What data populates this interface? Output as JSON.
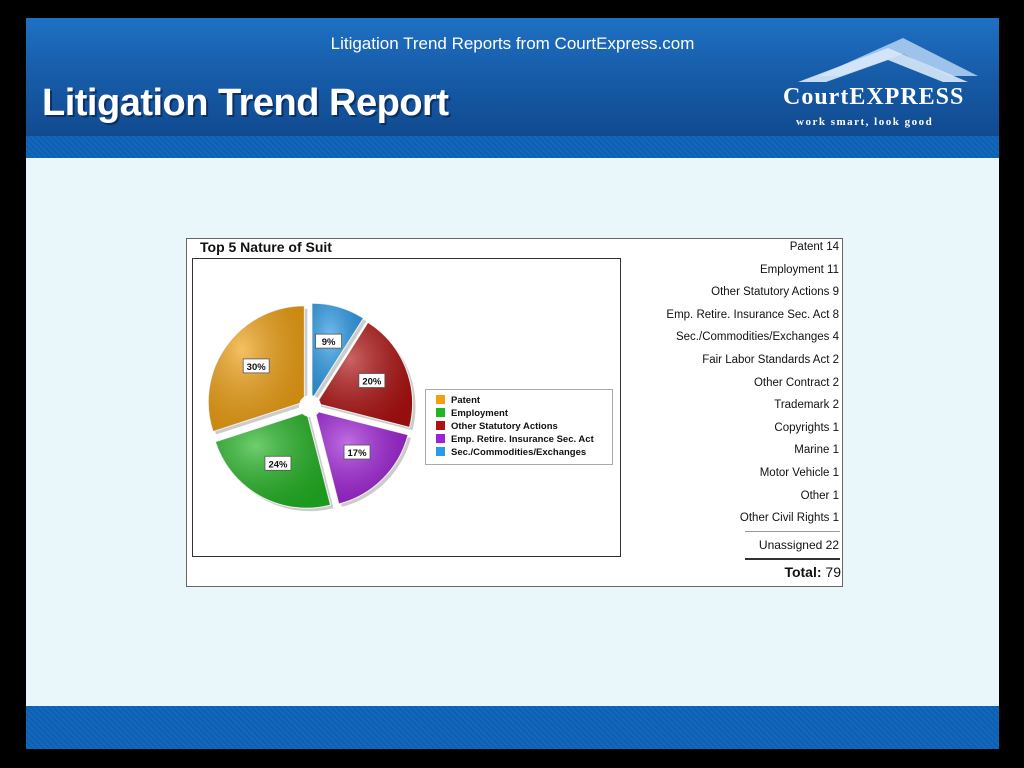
{
  "header": {
    "subtitle": "Litigation Trend Reports from CourtExpress.com",
    "title": "Litigation Trend Report",
    "logo_name": "CourtEXPRESS",
    "logo_tagline": "work smart, look good"
  },
  "report": {
    "unassigned_label": "Unassigned",
    "unassigned_value": "22",
    "total_label": "Total:",
    "total_value": "79",
    "categories": [
      {
        "label": "Patent",
        "value": "14"
      },
      {
        "label": "Employment",
        "value": "11"
      },
      {
        "label": "Other Statutory Actions",
        "value": "9"
      },
      {
        "label": "Emp. Retire. Insurance Sec. Act",
        "value": "8"
      },
      {
        "label": "Sec./Commodities/Exchanges",
        "value": "4"
      },
      {
        "label": "Fair Labor Standards Act",
        "value": "2"
      },
      {
        "label": "Other Contract",
        "value": "2"
      },
      {
        "label": "Trademark",
        "value": "2"
      },
      {
        "label": "Copyrights",
        "value": "1"
      },
      {
        "label": "Marine",
        "value": "1"
      },
      {
        "label": "Motor Vehicle",
        "value": "1"
      },
      {
        "label": "Other",
        "value": "1"
      },
      {
        "label": "Other Civil Rights",
        "value": "1"
      }
    ]
  },
  "chart_data": {
    "type": "pie",
    "title": "Top 5 Nature of Suit",
    "legend_position": "right",
    "slices": [
      {
        "name": "Patent",
        "value": 30,
        "label": "30%",
        "color": "#f0a010"
      },
      {
        "name": "Employment",
        "value": 24,
        "label": "24%",
        "color": "#22b422"
      },
      {
        "name": "Other Statutory Actions",
        "value": 20,
        "label": "20%",
        "color": "#b01010"
      },
      {
        "name": "Emp. Retire. Insurance Sec. Act",
        "value": 17,
        "label": "17%",
        "color": "#a020d8"
      },
      {
        "name": "Sec./Commodities/Exchanges",
        "value": 9,
        "label": "9%",
        "color": "#2a9be8"
      }
    ]
  }
}
